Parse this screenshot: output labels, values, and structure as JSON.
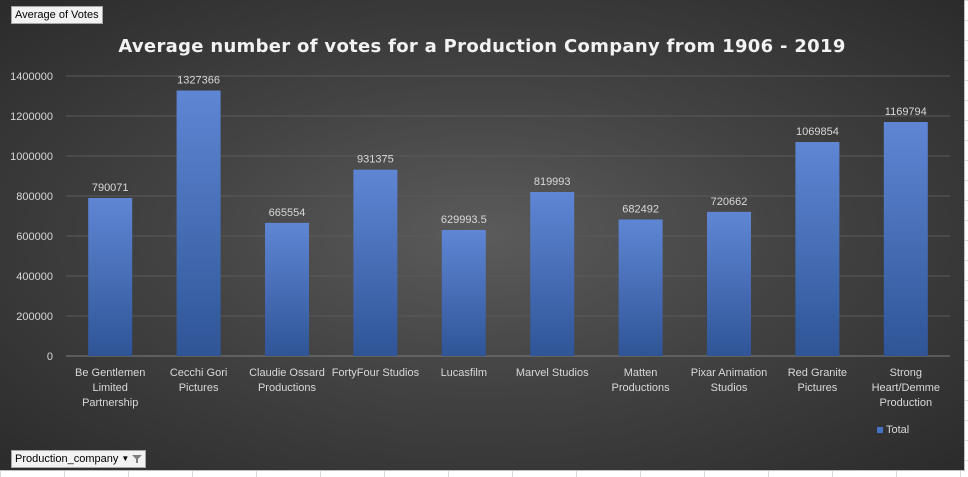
{
  "pivot": {
    "value_field": "Average of Votes",
    "axis_field": "Production_company"
  },
  "colors": {
    "bar_top": "#5f86d4",
    "bar_bottom": "#2f5597",
    "axis_text": "#d9d9d9",
    "gridline": "#5a5a5a"
  },
  "chart_data": {
    "type": "bar",
    "title": "Average number of votes for a Production Company from 1906 - 2019",
    "xlabel": "",
    "ylabel": "",
    "ylim": [
      0,
      1400000
    ],
    "yticks": [
      0,
      200000,
      400000,
      600000,
      800000,
      1000000,
      1200000,
      1400000
    ],
    "grid": true,
    "legend_position": "bottom-right",
    "categories": [
      "Be Gentlemen Limited Partnership",
      "Cecchi Gori Pictures",
      "Claudie Ossard Productions",
      "FortyFour Studios",
      "Lucasfilm",
      "Marvel Studios",
      "Matten Productions",
      "Pixar Animation Studios",
      "Red Granite Pictures",
      "Strong Heart/Demme Production"
    ],
    "category_lines": [
      [
        "Be Gentlemen",
        "Limited",
        "Partnership"
      ],
      [
        "Cecchi Gori",
        "Pictures"
      ],
      [
        "Claudie Ossard",
        "Productions"
      ],
      [
        "FortyFour Studios"
      ],
      [
        "Lucasfilm"
      ],
      [
        "Marvel Studios"
      ],
      [
        "Matten",
        "Productions"
      ],
      [
        "Pixar Animation",
        "Studios"
      ],
      [
        "Red Granite",
        "Pictures"
      ],
      [
        "Strong",
        "Heart/Demme",
        "Production"
      ]
    ],
    "series": [
      {
        "name": "Total",
        "values": [
          790071,
          1327366,
          665554,
          931375,
          629993.5,
          819993,
          682492,
          720662,
          1069854,
          1169794
        ],
        "labels": [
          "790071",
          "1327366",
          "665554",
          "931375",
          "629993.5",
          "819993",
          "682492",
          "720662",
          "1069854",
          "1169794"
        ]
      }
    ]
  }
}
